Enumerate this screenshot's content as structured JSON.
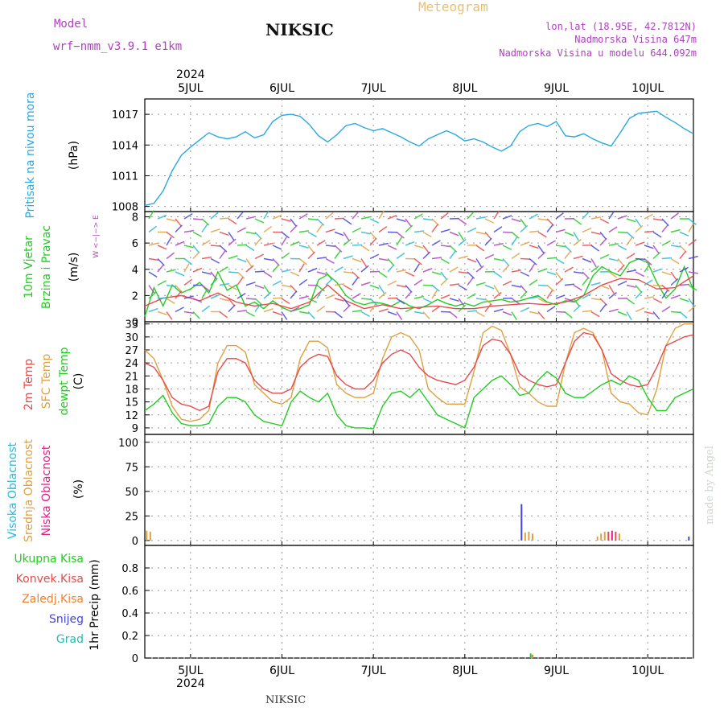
{
  "header": {
    "model_label": "Model",
    "model_name": "wrf−nmm_v3.9.1  e1km",
    "station": "NIKSIC",
    "meteogram": "Meteogram",
    "lonlat": "lon,lat (18.95E, 42.7812N)",
    "altitude": "Nadmorska Visina 647m",
    "model_altitude": "Nadmorska Visina u modelu 644.092m",
    "footer": "NIKSIC",
    "credit": "made by Angel"
  },
  "colors": {
    "pressure": "#29a8e0",
    "wind_total": "#22cc22",
    "t2m": "#e84a4a",
    "tsfc": "#e0a040",
    "dewpt": "#22cc22",
    "cloud_high": "#2ab8d8",
    "cloud_mid": "#e0a040",
    "cloud_low": "#e0208a",
    "precip_total": "#22cc22",
    "precip_conv": "#e84a4a",
    "precip_frz": "#f08030",
    "snow": "#4444dd",
    "hail": "#2ab8b0",
    "header_purple": "#b040c0",
    "meteogram": "#e8c070"
  },
  "chart_data": {
    "type": "line",
    "x_ticks": [
      "5JUL",
      "6JUL",
      "7JUL",
      "8JUL",
      "9JUL",
      "10JUL"
    ],
    "year": "2024",
    "x_range_days": [
      4.5,
      10.5
    ],
    "panels": [
      {
        "id": "pressure",
        "ylabels": [
          "Pritisak na nivou mora",
          "(hPa)"
        ],
        "ylim": [
          1007.5,
          1018.5
        ],
        "yticks": [
          1008,
          1011,
          1014,
          1017
        ],
        "series": [
          {
            "key": "pressure",
            "x": [
              4.5,
              4.6,
              4.7,
              4.8,
              4.9,
              5.0,
              5.1,
              5.2,
              5.3,
              5.4,
              5.5,
              5.6,
              5.7,
              5.8,
              5.9,
              6.0,
              6.1,
              6.2,
              6.3,
              6.4,
              6.5,
              6.6,
              6.7,
              6.8,
              6.9,
              7.0,
              7.1,
              7.2,
              7.3,
              7.4,
              7.5,
              7.6,
              7.7,
              7.8,
              7.9,
              8.0,
              8.1,
              8.2,
              8.3,
              8.4,
              8.5,
              8.6,
              8.7,
              8.8,
              8.9,
              9.0,
              9.1,
              9.2,
              9.3,
              9.4,
              9.5,
              9.6,
              9.7,
              9.8,
              9.9,
              10.0,
              10.1,
              10.2,
              10.3,
              10.4,
              10.5
            ],
            "y": [
              1008.1,
              1008.3,
              1009.5,
              1011.5,
              1013.0,
              1013.8,
              1014.5,
              1015.2,
              1014.8,
              1014.6,
              1014.8,
              1015.3,
              1014.7,
              1015.0,
              1016.3,
              1016.9,
              1017.0,
              1016.8,
              1016.0,
              1014.9,
              1014.3,
              1015.0,
              1015.9,
              1016.1,
              1015.7,
              1015.4,
              1015.6,
              1015.2,
              1014.8,
              1014.3,
              1013.9,
              1014.6,
              1015.0,
              1015.4,
              1015.0,
              1014.4,
              1014.6,
              1014.3,
              1013.8,
              1013.4,
              1013.9,
              1015.3,
              1015.9,
              1016.1,
              1015.8,
              1016.3,
              1014.9,
              1014.8,
              1015.1,
              1014.6,
              1014.2,
              1013.9,
              1015.2,
              1016.6,
              1017.1,
              1017.2,
              1017.3,
              1016.7,
              1016.2,
              1015.6,
              1015.1
            ]
          }
        ]
      },
      {
        "id": "wind",
        "ylabels": [
          "10m Vjetar",
          "Brzina i Pravac",
          "(m/s)"
        ],
        "compass": "W  <−|−>  E",
        "ylim": [
          0,
          8.4
        ],
        "yticks": [
          0,
          2,
          4,
          6,
          8
        ],
        "series": [
          {
            "key": "wind_total",
            "x": [
              4.5,
              4.6,
              4.7,
              4.8,
              4.9,
              5.0,
              5.1,
              5.2,
              5.3,
              5.4,
              5.5,
              5.6,
              5.7,
              5.8,
              5.9,
              6.0,
              6.1,
              6.2,
              6.3,
              6.4,
              6.5,
              6.6,
              6.7,
              6.8,
              6.9,
              7.0,
              7.1,
              7.2,
              7.3,
              7.4,
              7.5,
              7.6,
              7.7,
              7.8,
              7.9,
              8.0,
              8.1,
              8.2,
              8.3,
              8.4,
              8.5,
              8.6,
              8.7,
              8.8,
              8.9,
              9.0,
              9.1,
              9.2,
              9.3,
              9.4,
              9.5,
              9.6,
              9.7,
              9.8,
              9.9,
              10.0,
              10.1,
              10.2,
              10.3,
              10.4,
              10.5
            ],
            "y": [
              0.4,
              2.6,
              1.2,
              2.8,
              2.2,
              2.5,
              3.0,
              2.2,
              3.8,
              2.4,
              2.8,
              1.2,
              1.5,
              1.0,
              1.6,
              1.1,
              0.8,
              1.0,
              1.3,
              3.2,
              3.6,
              3.0,
              2.0,
              1.5,
              1.3,
              1.5,
              1.4,
              1.2,
              1.6,
              1.2,
              1.0,
              1.3,
              1.7,
              1.4,
              1.2,
              1.4,
              1.2,
              1.5,
              1.6,
              1.7,
              1.5,
              1.6,
              1.8,
              2.0,
              1.5,
              1.3,
              1.6,
              1.5,
              2.0,
              3.5,
              4.2,
              3.8,
              3.5,
              4.5,
              4.8,
              4.5,
              3.0,
              1.8,
              2.5,
              4.2,
              2.4
            ]
          },
          {
            "key": "t2m",
            "x": [
              4.5,
              4.7,
              4.9,
              5.1,
              5.3,
              5.5,
              5.7,
              5.9,
              6.1,
              6.3,
              6.5,
              6.7,
              6.9,
              7.1,
              7.3,
              7.5,
              7.7,
              7.9,
              8.1,
              8.3,
              8.5,
              8.7,
              8.9,
              9.1,
              9.3,
              9.5,
              9.7,
              9.9,
              10.1,
              10.3,
              10.5
            ],
            "y": [
              1.2,
              1.8,
              2.0,
              1.6,
              2.2,
              1.5,
              1.2,
              1.4,
              1.0,
              1.5,
              2.8,
              1.6,
              1.0,
              1.3,
              1.0,
              1.1,
              1.2,
              1.0,
              1.0,
              1.2,
              1.3,
              1.4,
              1.3,
              1.5,
              2.0,
              2.8,
              3.3,
              3.2,
              2.5,
              2.6,
              3.5
            ]
          }
        ]
      },
      {
        "id": "temperature",
        "ylabels": [
          "2m Temp",
          "SFC Temp",
          "dewpt Temp",
          "(C)"
        ],
        "ylim": [
          7.5,
          33.5
        ],
        "yticks": [
          9,
          12,
          15,
          18,
          21,
          24,
          27,
          30,
          33
        ],
        "series": [
          {
            "key": "tsfc",
            "x": [
              4.5,
              4.6,
              4.7,
              4.8,
              4.9,
              5.0,
              5.1,
              5.2,
              5.3,
              5.4,
              5.5,
              5.6,
              5.7,
              5.8,
              5.9,
              6.0,
              6.1,
              6.2,
              6.3,
              6.4,
              6.5,
              6.6,
              6.7,
              6.8,
              6.9,
              7.0,
              7.1,
              7.2,
              7.3,
              7.4,
              7.5,
              7.6,
              7.7,
              7.8,
              7.9,
              8.0,
              8.1,
              8.2,
              8.3,
              8.4,
              8.5,
              8.6,
              8.7,
              8.8,
              8.9,
              9.0,
              9.1,
              9.2,
              9.3,
              9.4,
              9.5,
              9.6,
              9.7,
              9.8,
              9.9,
              10.0,
              10.1,
              10.2,
              10.3,
              10.4,
              10.5
            ],
            "y": [
              27,
              25,
              20,
              14,
              11,
              10.5,
              11,
              13,
              24,
              28,
              28,
              26.5,
              19,
              17,
              15,
              14.5,
              16,
              25,
              29,
              29,
              27.5,
              19,
              17,
              16,
              16,
              17,
              25,
              30,
              31,
              30,
              27,
              18,
              16,
              14.5,
              14.5,
              14.5,
              22,
              31,
              32.5,
              31.5,
              26,
              18.5,
              17,
              15,
              14,
              14,
              24,
              31,
              32,
              31,
              27,
              17,
              15,
              14.5,
              12.5,
              12,
              18,
              28,
              32,
              33,
              33
            ]
          },
          {
            "key": "t2m",
            "x": [
              4.5,
              4.6,
              4.7,
              4.8,
              4.9,
              5.0,
              5.1,
              5.2,
              5.3,
              5.4,
              5.5,
              5.6,
              5.7,
              5.8,
              5.9,
              6.0,
              6.1,
              6.2,
              6.3,
              6.4,
              6.5,
              6.6,
              6.7,
              6.8,
              6.9,
              7.0,
              7.1,
              7.2,
              7.3,
              7.4,
              7.5,
              7.6,
              7.7,
              7.8,
              7.9,
              8.0,
              8.1,
              8.2,
              8.3,
              8.4,
              8.5,
              8.6,
              8.7,
              8.8,
              8.9,
              9.0,
              9.1,
              9.2,
              9.3,
              9.4,
              9.5,
              9.6,
              9.7,
              9.8,
              9.9,
              10.0,
              10.1,
              10.2,
              10.3,
              10.4,
              10.5
            ],
            "y": [
              24,
              23,
              20,
              16,
              14.5,
              14,
              13,
              14,
              22,
              25,
              25,
              24,
              20,
              18,
              17,
              17,
              18,
              23,
              25,
              26,
              25.5,
              21,
              19,
              18,
              18,
              20,
              24,
              26,
              27,
              26,
              23,
              21,
              20,
              19.5,
              19,
              20,
              23,
              28,
              29.5,
              29,
              26,
              21.5,
              20,
              19,
              18.5,
              19,
              24,
              29,
              31,
              30.5,
              27,
              21.5,
              20,
              19,
              18.5,
              19,
              23,
              28,
              29,
              30,
              30.5
            ]
          },
          {
            "key": "dewpt",
            "x": [
              4.5,
              4.6,
              4.7,
              4.8,
              4.9,
              5.0,
              5.1,
              5.2,
              5.3,
              5.4,
              5.5,
              5.6,
              5.7,
              5.8,
              5.9,
              6.0,
              6.1,
              6.2,
              6.3,
              6.4,
              6.5,
              6.6,
              6.7,
              6.8,
              6.9,
              7.0,
              7.1,
              7.2,
              7.3,
              7.4,
              7.5,
              7.6,
              7.7,
              7.8,
              7.9,
              8.0,
              8.1,
              8.2,
              8.3,
              8.4,
              8.5,
              8.6,
              8.7,
              8.8,
              8.9,
              9.0,
              9.1,
              9.2,
              9.3,
              9.4,
              9.5,
              9.6,
              9.7,
              9.8,
              9.9,
              10.0,
              10.1,
              10.2,
              10.3,
              10.4,
              10.5
            ],
            "y": [
              13,
              14.5,
              16.5,
              12.5,
              10,
              9.5,
              9.5,
              10,
              14,
              16,
              16,
              15,
              12,
              10.5,
              10,
              9.5,
              15,
              17.5,
              16,
              15,
              17,
              12,
              9.5,
              9,
              9,
              8.8,
              14,
              17,
              17.5,
              16,
              18,
              15,
              12,
              11,
              10,
              9,
              16,
              18,
              20,
              21,
              19,
              16.5,
              17,
              20,
              22,
              20.5,
              17,
              16,
              16,
              17.5,
              19,
              20,
              19,
              21,
              20,
              16,
              13,
              13,
              16,
              17,
              18
            ]
          }
        ]
      },
      {
        "id": "clouds",
        "ylabels": [
          "Visoka Oblacnost",
          "Srednja Oblacnost",
          "Niska Oblacnost",
          "(%)"
        ],
        "ylim": [
          -5,
          108
        ],
        "yticks": [
          0,
          25,
          50,
          75,
          100
        ],
        "bars": [
          {
            "x": 4.52,
            "y": 10,
            "key": "cloud_mid"
          },
          {
            "x": 4.56,
            "y": 9,
            "key": "cloud_mid"
          },
          {
            "x": 8.62,
            "y": 37,
            "key": "snow"
          },
          {
            "x": 8.66,
            "y": 8,
            "key": "cloud_mid"
          },
          {
            "x": 8.7,
            "y": 9,
            "key": "cloud_mid"
          },
          {
            "x": 8.74,
            "y": 7,
            "key": "cloud_mid"
          },
          {
            "x": 9.45,
            "y": 4,
            "key": "cloud_mid"
          },
          {
            "x": 9.49,
            "y": 7,
            "key": "cloud_mid"
          },
          {
            "x": 9.53,
            "y": 9,
            "key": "cloud_mid"
          },
          {
            "x": 9.57,
            "y": 9,
            "key": "t2m"
          },
          {
            "x": 9.61,
            "y": 10,
            "key": "cloud_low"
          },
          {
            "x": 9.65,
            "y": 9,
            "key": "t2m"
          },
          {
            "x": 9.69,
            "y": 7,
            "key": "cloud_mid"
          },
          {
            "x": 10.45,
            "y": 4,
            "key": "snow"
          }
        ]
      },
      {
        "id": "precip",
        "ylabels": [
          "Ukupna  Kisa",
          "Konvek.Kisa",
          "Zaledj.Kisa",
          "Snijeg",
          "Grad",
          "1hr Precip (mm)"
        ],
        "ylim": [
          0,
          1.0
        ],
        "yticks": [
          0,
          0.2,
          0.4,
          0.6,
          0.8
        ],
        "bars": [
          {
            "x": 8.72,
            "y": 0.04,
            "key": "precip_total"
          },
          {
            "x": 8.74,
            "y": 0.03,
            "key": "precip_frz"
          }
        ]
      }
    ]
  }
}
